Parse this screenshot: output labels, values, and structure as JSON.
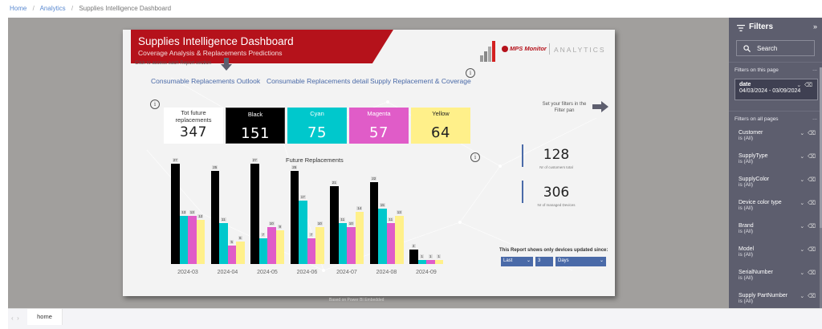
{
  "breadcrumb": {
    "items": [
      "Home",
      "Analytics",
      "Supplies Intelligence Dashboard"
    ],
    "separator": "/"
  },
  "report": {
    "title": "Supplies Intelligence Dashboard",
    "subtitle": "Coverage Analysis & Replacements Predictions",
    "hint": "Click to access each Report section",
    "nav_links": [
      "Consumable Replacements Outlook",
      "Consumable Replacements detail",
      "Supply Replacement & Coverage"
    ],
    "logo": {
      "brand": "MPS Monitor",
      "product": "ANALYTICS"
    },
    "cards": [
      {
        "label": "Tot future replacements",
        "value": "347",
        "bg": "#ffffff",
        "fg": "#222222"
      },
      {
        "label": "Black",
        "value": "151",
        "bg": "#000000",
        "fg": "#ffffff"
      },
      {
        "label": "Cyan",
        "value": "75",
        "bg": "#00c8cc",
        "fg": "#ffffff"
      },
      {
        "label": "Magenta",
        "value": "57",
        "bg": "#e05cc8",
        "fg": "#ffffff"
      },
      {
        "label": "Yellow",
        "value": "64",
        "bg": "#fff08a",
        "fg": "#222222"
      }
    ],
    "set_filters_hint": "Set your filters in the Filter pan",
    "kpis": [
      {
        "value": "128",
        "label": "Nr of customers total"
      },
      {
        "value": "306",
        "label": "Nr of managed Devices"
      }
    ],
    "since": {
      "label": "This Report shows only devices updated since:",
      "period": "Last",
      "count": "3",
      "unit": "Days"
    },
    "powered_by": "Based on Power BI Embedded",
    "info_icon": "i"
  },
  "chart_data": {
    "type": "bar",
    "title": "Future Replacements",
    "categories": [
      "2024-03",
      "2024-04",
      "2024-05",
      "2024-06",
      "2024-07",
      "2024-08",
      "2024-09"
    ],
    "series": [
      {
        "name": "Black",
        "color": "#000000",
        "values": [
          27,
          25,
          27,
          25,
          21,
          22,
          4
        ]
      },
      {
        "name": "Cyan",
        "color": "#00c8cc",
        "values": [
          13,
          11,
          7,
          17,
          11,
          15,
          1
        ]
      },
      {
        "name": "Magenta",
        "color": "#e05cc8",
        "values": [
          13,
          5,
          10,
          7,
          10,
          11,
          1
        ]
      },
      {
        "name": "Yellow",
        "color": "#fff08a",
        "values": [
          12,
          6,
          9,
          10,
          14,
          13,
          1
        ]
      }
    ],
    "xlabel": "",
    "ylabel": "",
    "ylim": [
      0,
      27
    ],
    "data_labels": true,
    "grid": false,
    "legend": "none"
  },
  "filters": {
    "title": "Filters",
    "search_placeholder": "Search",
    "this_page_label": "Filters on this page",
    "all_pages_label": "Filters on all pages",
    "more": "...",
    "date_filter": {
      "name": "date",
      "value": "04/03/2024 - 03/09/2024"
    },
    "all_pages": [
      {
        "name": "Customer",
        "value": "is (All)"
      },
      {
        "name": "SupplyType",
        "value": "is (All)"
      },
      {
        "name": "SupplyColor",
        "value": "is (All)"
      },
      {
        "name": "Device color type",
        "value": "is (All)"
      },
      {
        "name": "Brand",
        "value": "is (All)"
      },
      {
        "name": "Model",
        "value": "is (All)"
      },
      {
        "name": "SerialNumber",
        "value": "is (All)"
      },
      {
        "name": "Supply PartNumber",
        "value": "is (All)"
      }
    ]
  },
  "pages": {
    "tabs": [
      "home"
    ]
  }
}
